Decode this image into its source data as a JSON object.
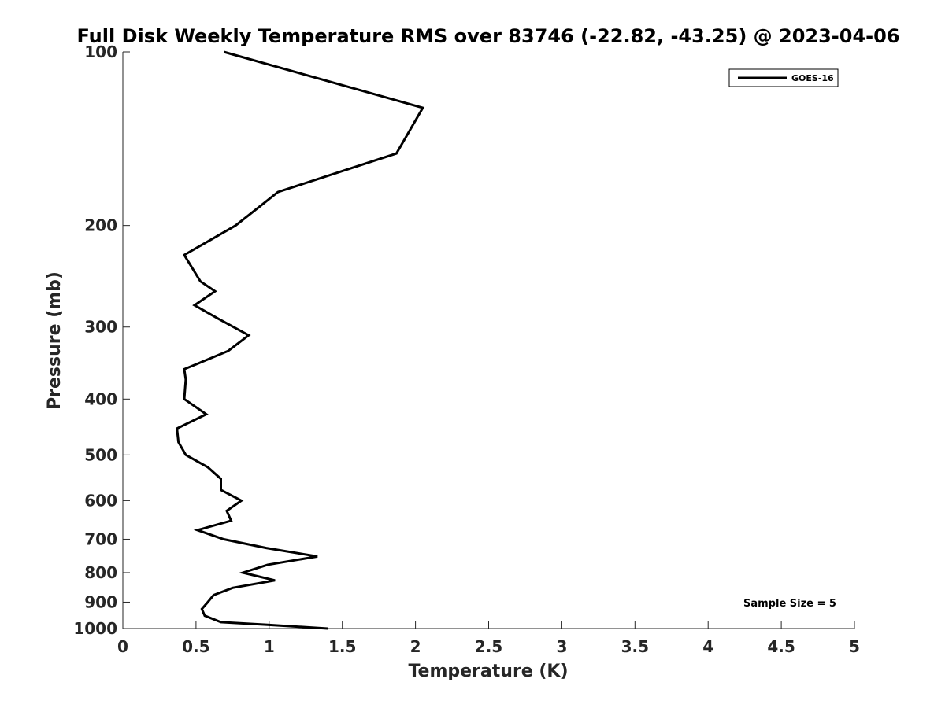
{
  "chart_data": {
    "type": "line",
    "title": "Full Disk Weekly Temperature RMS over 83746 (-22.82, -43.25) @ 2023-04-06",
    "xlabel": "Temperature (K)",
    "ylabel": "Pressure (mb)",
    "xlim": [
      0,
      5
    ],
    "ylim": [
      100,
      1000
    ],
    "yscale": "log",
    "y_reversed": true,
    "x_ticks": [
      0,
      0.5,
      1,
      1.5,
      2,
      2.5,
      3,
      3.5,
      4,
      4.5,
      5
    ],
    "x_tick_labels": [
      "0",
      "0.5",
      "1",
      "1.5",
      "2",
      "2.5",
      "3",
      "3.5",
      "4",
      "4.5",
      "5"
    ],
    "y_ticks": [
      100,
      200,
      300,
      400,
      500,
      600,
      700,
      800,
      900,
      1000
    ],
    "y_tick_labels": [
      "100",
      "200",
      "300",
      "400",
      "500",
      "600",
      "700",
      "800",
      "900",
      "1000"
    ],
    "grid": false,
    "legend_position": "top-right",
    "annotation": "Sample Size = 5",
    "series": [
      {
        "name": "GOES-16",
        "color": "#000000",
        "x": [
          0.69,
          2.05,
          1.87,
          1.06,
          0.94,
          0.77,
          0.42,
          0.53,
          0.63,
          0.49,
          0.65,
          0.86,
          0.72,
          0.42,
          0.43,
          0.42,
          0.57,
          0.37,
          0.38,
          0.43,
          0.58,
          0.67,
          0.67,
          0.81,
          0.71,
          0.74,
          0.51,
          0.69,
          0.98,
          1.33,
          0.99,
          0.82,
          1.04,
          0.75,
          0.62,
          0.58,
          0.54,
          0.56,
          0.67,
          0.99,
          1.4
        ],
        "y": [
          100,
          125,
          150,
          175,
          185,
          200,
          225,
          250,
          260,
          275,
          290,
          310,
          330,
          355,
          370,
          400,
          425,
          450,
          475,
          500,
          525,
          550,
          575,
          600,
          625,
          650,
          675,
          700,
          725,
          750,
          775,
          800,
          825,
          850,
          875,
          900,
          925,
          950,
          975,
          985,
          1000
        ]
      }
    ]
  }
}
